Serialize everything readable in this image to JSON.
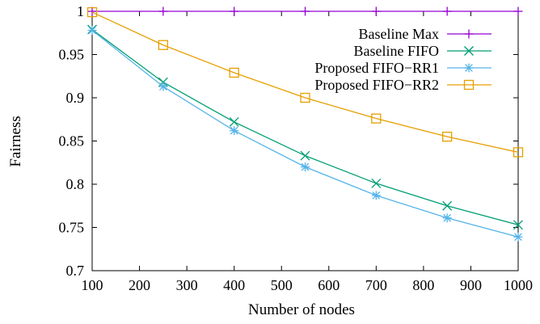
{
  "chart_data": {
    "type": "line",
    "title": "",
    "xlabel": "Number of nodes",
    "ylabel": "Fairness",
    "xlim": [
      100,
      1000
    ],
    "ylim": [
      0.7,
      1.0
    ],
    "xticks": [
      100,
      200,
      300,
      400,
      500,
      600,
      700,
      800,
      900,
      1000
    ],
    "xtick_labels": [
      "100",
      "200",
      "300",
      "400",
      "500",
      "600",
      "700",
      "800",
      "900",
      "1000"
    ],
    "yticks": [
      0.7,
      0.75,
      0.8,
      0.85,
      0.9,
      0.95,
      1.0
    ],
    "ytick_labels": [
      "0.7",
      "0.75",
      "0.8",
      "0.85",
      "0.9",
      "0.95",
      "1"
    ],
    "grid": false,
    "legend_position": "top-right",
    "x": [
      100,
      250,
      400,
      550,
      700,
      850,
      1000
    ],
    "series": [
      {
        "name": "Baseline Max",
        "color": "#9400d3",
        "marker": "plus",
        "values": [
          1.0,
          1.0,
          1.0,
          1.0,
          1.0,
          1.0,
          1.0
        ]
      },
      {
        "name": "Baseline FIFO",
        "color": "#009e73",
        "marker": "x",
        "values": [
          0.979,
          0.918,
          0.872,
          0.833,
          0.801,
          0.775,
          0.753
        ]
      },
      {
        "name": "Proposed FIFO−RR1",
        "color": "#56b4e9",
        "marker": "star",
        "values": [
          0.978,
          0.913,
          0.862,
          0.82,
          0.787,
          0.761,
          0.739
        ]
      },
      {
        "name": "Proposed FIFO−RR2",
        "color": "#e69f00",
        "marker": "square",
        "values": [
          0.999,
          0.961,
          0.929,
          0.9,
          0.876,
          0.855,
          0.837
        ]
      }
    ]
  }
}
